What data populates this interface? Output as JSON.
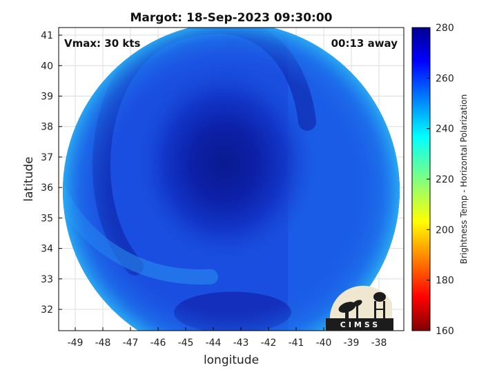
{
  "chart_data": {
    "type": "heatmap",
    "title": "Margot: 18-Sep-2023 09:30:00",
    "xlabel": "longitude",
    "ylabel": "latitude",
    "xlim": [
      -49.6,
      -37.1
    ],
    "ylim": [
      31.3,
      41.25
    ],
    "x_ticks": [
      -49,
      -48,
      -47,
      -46,
      -45,
      -44,
      -43,
      -42,
      -41,
      -40,
      -39,
      -38
    ],
    "y_ticks": [
      32,
      33,
      34,
      35,
      36,
      37,
      38,
      39,
      40,
      41
    ],
    "grid": true,
    "annotations": {
      "vmax": "Vmax: 30 kts",
      "time_offset": "00:13 away"
    },
    "colorbar": {
      "label": "Brightness Temp - Horizontal Polarization",
      "range": [
        160,
        280
      ],
      "ticks": [
        160,
        180,
        200,
        220,
        240,
        260,
        280
      ],
      "colormap": "jet"
    },
    "field": {
      "center_lon": -43.6,
      "center_lat": 36.8,
      "swath_center_lon": -43.35,
      "swath_center_lat": 35.9,
      "swath_radius_deg": 6.1,
      "core_value": 272,
      "edge_value": 246,
      "east_value": 251
    }
  },
  "logo": {
    "text": "CIMSS"
  },
  "colors": {
    "frame": "#000000",
    "grid": "#d9d9d9",
    "logo_bg": "#efe7cf",
    "logo_fg": "#1c1c1c"
  }
}
